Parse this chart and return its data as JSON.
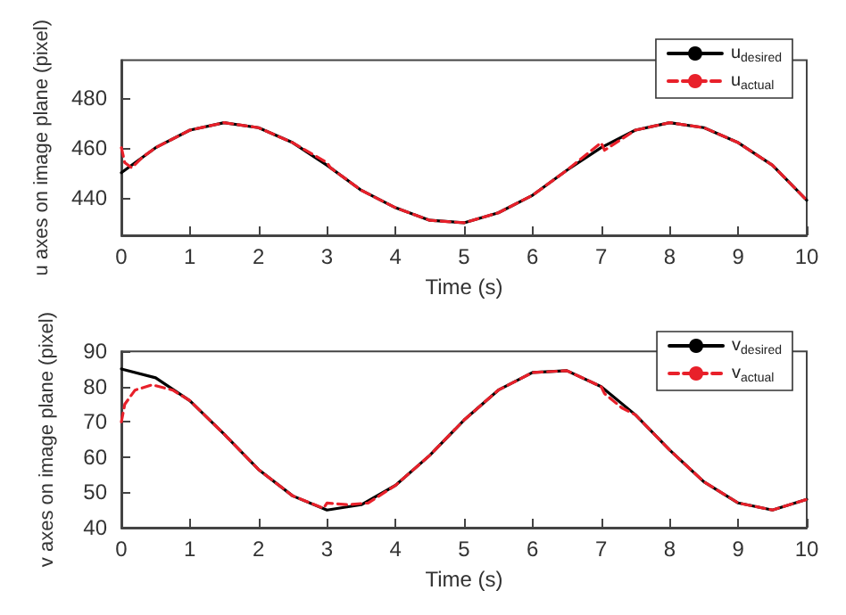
{
  "chart_data": [
    {
      "type": "line",
      "xlabel": "Time (s)",
      "ylabel": "u axes on image plane (pixel)",
      "xlim": [
        0,
        10
      ],
      "xticks": [
        0,
        1,
        2,
        3,
        4,
        5,
        6,
        7,
        8,
        9,
        10
      ],
      "ylim": [
        425,
        495
      ],
      "yticks": [
        440,
        460,
        480
      ],
      "grid": false,
      "legend": "top right",
      "marker": "none",
      "series": [
        {
          "name": "u$_{desired}$",
          "color": "#000000",
          "line_style": "solid",
          "x": [
            0,
            0.5,
            1,
            1.5,
            2,
            2.5,
            3,
            3.5,
            4,
            4.5,
            5,
            5.5,
            6,
            6.5,
            7,
            7.5,
            8,
            8.5,
            9,
            9.5,
            10
          ],
          "values": [
            450,
            460,
            467,
            470,
            468,
            462,
            453,
            443,
            436,
            431,
            430,
            434,
            441,
            451,
            460,
            467,
            470,
            468,
            462,
            453,
            439
          ]
        },
        {
          "name": "u$_{actual}$",
          "color": "#e8202a",
          "line_style": "dashed",
          "x": [
            0,
            0.05,
            0.15,
            0.3,
            0.5,
            1,
            1.5,
            2,
            2.5,
            3,
            3.05,
            3.5,
            4,
            4.5,
            5,
            5.5,
            6,
            6.5,
            7,
            7.05,
            7.5,
            8,
            8.5,
            9,
            9.5,
            10
          ],
          "values": [
            460,
            454,
            452,
            456,
            460,
            467,
            470,
            468,
            462,
            454,
            452,
            443,
            436,
            431,
            430,
            434,
            441,
            451,
            462,
            459,
            467,
            470,
            468,
            462,
            453,
            439
          ]
        }
      ]
    },
    {
      "type": "line",
      "xlabel": "Time (s)",
      "ylabel": "v axes on image plane (pixel)",
      "xlim": [
        0,
        10
      ],
      "xticks": [
        0,
        1,
        2,
        3,
        4,
        5,
        6,
        7,
        8,
        9,
        10
      ],
      "ylim": [
        40,
        90
      ],
      "yticks": [
        40,
        50,
        60,
        70,
        80,
        90
      ],
      "grid": false,
      "legend": "top right",
      "marker": "none",
      "series": [
        {
          "name": "v$_{desired}$",
          "color": "#000000",
          "line_style": "solid",
          "x": [
            0,
            0.5,
            1,
            1.5,
            2,
            2.5,
            3,
            3.5,
            4,
            4.5,
            5,
            5.5,
            6,
            6.5,
            7,
            7.5,
            8,
            8.5,
            9,
            9.5,
            10
          ],
          "values": [
            85,
            82.5,
            76,
            66.5,
            56.5,
            49,
            45,
            46.5,
            52,
            60.5,
            70.5,
            79,
            84,
            84.5,
            80,
            72,
            62,
            53,
            47,
            45,
            48
          ]
        },
        {
          "name": "v$_{actual}$",
          "color": "#e8202a",
          "line_style": "dashed",
          "x": [
            0,
            0.05,
            0.2,
            0.45,
            0.75,
            1,
            1.5,
            2,
            2.5,
            2.95,
            3.0,
            3.3,
            3.6,
            4,
            4.5,
            5,
            5.5,
            6,
            6.5,
            7,
            7.05,
            7.3,
            7.5,
            8,
            8.5,
            9,
            9.5,
            10
          ],
          "values": [
            70,
            75,
            79,
            80.5,
            79,
            76,
            66.5,
            56.5,
            49,
            45.5,
            47,
            46.5,
            47,
            52,
            60.5,
            70.5,
            79,
            84,
            84.5,
            80,
            78,
            74,
            72,
            62,
            53,
            47,
            45,
            48
          ]
        }
      ]
    }
  ]
}
